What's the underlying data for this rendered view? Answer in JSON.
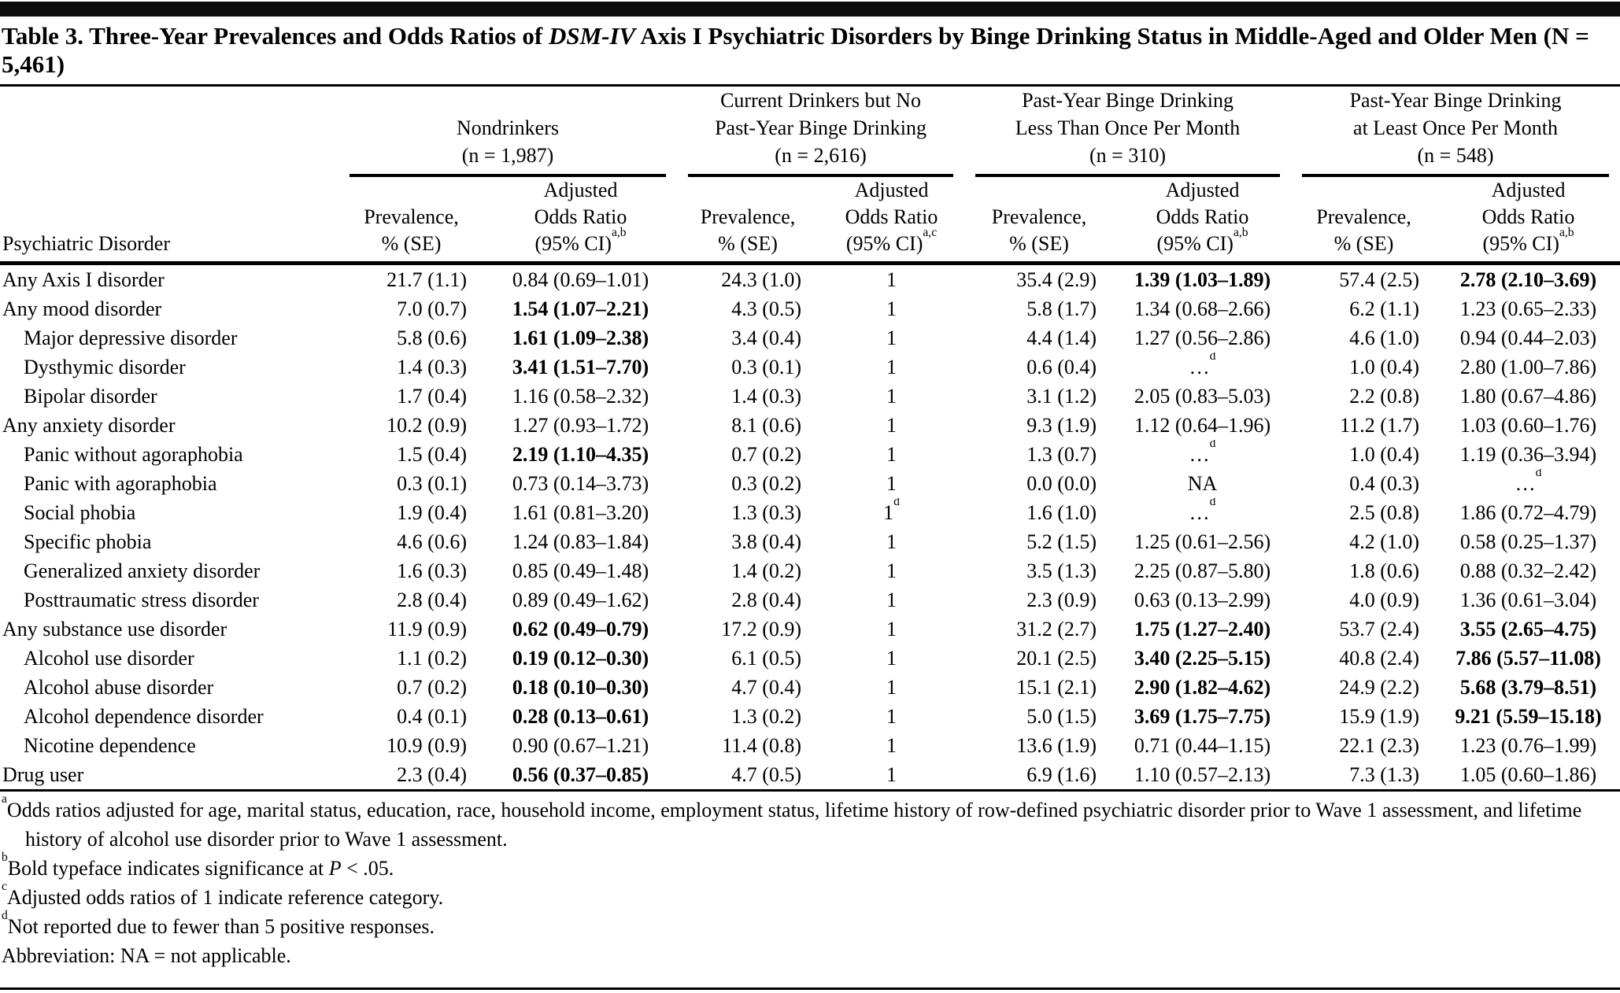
{
  "table": {
    "title": {
      "part1": "Table 3. Three-Year Prevalences and Odds Ratios of ",
      "italic": "DSM-IV",
      "part2": " Axis I Psychiatric Disorders by Binge Drinking Status in Middle-Aged and Older Men (N = 5,461)"
    },
    "row_header_label": "Psychiatric Disorder",
    "groups": [
      {
        "title_lines": [
          "Nondrinkers",
          "(n = 1,987)"
        ],
        "prev_header_lines": [
          "Prevalence,",
          "% (SE)"
        ],
        "or_header_lines": [
          "Adjusted",
          "Odds Ratio",
          "(95% CI)"
        ],
        "or_sup": "a,b"
      },
      {
        "title_lines": [
          "Current Drinkers but No",
          "Past-Year Binge Drinking",
          "(n = 2,616)"
        ],
        "prev_header_lines": [
          "Prevalence,",
          "% (SE)"
        ],
        "or_header_lines": [
          "Adjusted",
          "Odds Ratio",
          "(95% CI)"
        ],
        "or_sup": "a,c"
      },
      {
        "title_lines": [
          "Past-Year Binge Drinking",
          "Less Than Once Per Month",
          "(n = 310)"
        ],
        "prev_header_lines": [
          "Prevalence,",
          "% (SE)"
        ],
        "or_header_lines": [
          "Adjusted",
          "Odds Ratio",
          "(95% CI)"
        ],
        "or_sup": "a,b"
      },
      {
        "title_lines": [
          "Past-Year Binge Drinking",
          "at Least Once Per Month",
          "(n = 548)"
        ],
        "prev_header_lines": [
          "Prevalence,",
          "% (SE)"
        ],
        "or_header_lines": [
          "Adjusted",
          "Odds Ratio",
          "(95% CI)"
        ],
        "or_sup": "a,b"
      }
    ],
    "rows": [
      {
        "label": "Any Axis I disorder",
        "indent": false,
        "cells": [
          {
            "t": "21.7 (1.1)"
          },
          {
            "t": "0.84 (0.69–1.01)"
          },
          {
            "t": "24.3 (1.0)"
          },
          {
            "t": "1"
          },
          {
            "t": "35.4 (2.9)"
          },
          {
            "t": "1.39 (1.03–1.89)",
            "bold": true
          },
          {
            "t": "57.4 (2.5)"
          },
          {
            "t": "2.78 (2.10–3.69)",
            "bold": true
          }
        ]
      },
      {
        "label": "Any mood disorder",
        "indent": false,
        "cells": [
          {
            "t": "7.0 (0.7)"
          },
          {
            "t": "1.54 (1.07–2.21)",
            "bold": true
          },
          {
            "t": "4.3 (0.5)"
          },
          {
            "t": "1"
          },
          {
            "t": "5.8 (1.7)"
          },
          {
            "t": "1.34 (0.68–2.66)"
          },
          {
            "t": "6.2 (1.1)"
          },
          {
            "t": "1.23 (0.65–2.33)"
          }
        ]
      },
      {
        "label": "Major depressive disorder",
        "indent": true,
        "cells": [
          {
            "t": "5.8 (0.6)"
          },
          {
            "t": "1.61 (1.09–2.38)",
            "bold": true
          },
          {
            "t": "3.4 (0.4)"
          },
          {
            "t": "1"
          },
          {
            "t": "4.4 (1.4)"
          },
          {
            "t": "1.27 (0.56–2.86)"
          },
          {
            "t": "4.6 (1.0)"
          },
          {
            "t": "0.94 (0.44–2.03)"
          }
        ]
      },
      {
        "label": "Dysthymic disorder",
        "indent": true,
        "cells": [
          {
            "t": "1.4 (0.3)"
          },
          {
            "t": "3.41 (1.51–7.70)",
            "bold": true
          },
          {
            "t": "0.3 (0.1)"
          },
          {
            "t": "1"
          },
          {
            "t": "0.6 (0.4)"
          },
          {
            "t": "…",
            "sup": "d"
          },
          {
            "t": "1.0 (0.4)"
          },
          {
            "t": "2.80 (1.00–7.86)"
          }
        ]
      },
      {
        "label": "Bipolar disorder",
        "indent": true,
        "cells": [
          {
            "t": "1.7 (0.4)"
          },
          {
            "t": "1.16 (0.58–2.32)"
          },
          {
            "t": "1.4 (0.3)"
          },
          {
            "t": "1"
          },
          {
            "t": "3.1 (1.2)"
          },
          {
            "t": "2.05 (0.83–5.03)"
          },
          {
            "t": "2.2 (0.8)"
          },
          {
            "t": "1.80 (0.67–4.86)"
          }
        ]
      },
      {
        "label": "Any anxiety disorder",
        "indent": false,
        "cells": [
          {
            "t": "10.2 (0.9)"
          },
          {
            "t": "1.27 (0.93–1.72)"
          },
          {
            "t": "8.1 (0.6)"
          },
          {
            "t": "1"
          },
          {
            "t": "9.3 (1.9)"
          },
          {
            "t": "1.12 (0.64–1.96)"
          },
          {
            "t": "11.2 (1.7)"
          },
          {
            "t": "1.03 (0.60–1.76)"
          }
        ]
      },
      {
        "label": "Panic without agoraphobia",
        "indent": true,
        "cells": [
          {
            "t": "1.5 (0.4)"
          },
          {
            "t": "2.19 (1.10–4.35)",
            "bold": true
          },
          {
            "t": "0.7 (0.2)"
          },
          {
            "t": "1"
          },
          {
            "t": "1.3 (0.7)"
          },
          {
            "t": "…",
            "sup": "d"
          },
          {
            "t": "1.0 (0.4)"
          },
          {
            "t": "1.19 (0.36–3.94)"
          }
        ]
      },
      {
        "label": "Panic with agoraphobia",
        "indent": true,
        "cells": [
          {
            "t": "0.3 (0.1)"
          },
          {
            "t": "0.73 (0.14–3.73)"
          },
          {
            "t": "0.3 (0.2)"
          },
          {
            "t": "1"
          },
          {
            "t": "0.0 (0.0)"
          },
          {
            "t": "NA"
          },
          {
            "t": "0.4 (0.3)"
          },
          {
            "t": "…",
            "sup": "d"
          }
        ]
      },
      {
        "label": "Social phobia",
        "indent": true,
        "cells": [
          {
            "t": "1.9 (0.4)"
          },
          {
            "t": "1.61 (0.81–3.20)"
          },
          {
            "t": "1.3 (0.3)"
          },
          {
            "t": "1",
            "sup": "d"
          },
          {
            "t": "1.6 (1.0)"
          },
          {
            "t": "…",
            "sup": "d"
          },
          {
            "t": "2.5 (0.8)"
          },
          {
            "t": "1.86 (0.72–4.79)"
          }
        ]
      },
      {
        "label": "Specific phobia",
        "indent": true,
        "cells": [
          {
            "t": "4.6 (0.6)"
          },
          {
            "t": "1.24 (0.83–1.84)"
          },
          {
            "t": "3.8 (0.4)"
          },
          {
            "t": "1"
          },
          {
            "t": "5.2 (1.5)"
          },
          {
            "t": "1.25 (0.61–2.56)"
          },
          {
            "t": "4.2 (1.0)"
          },
          {
            "t": "0.58 (0.25–1.37)"
          }
        ]
      },
      {
        "label": "Generalized anxiety disorder",
        "indent": true,
        "cells": [
          {
            "t": "1.6 (0.3)"
          },
          {
            "t": "0.85 (0.49–1.48)"
          },
          {
            "t": "1.4 (0.2)"
          },
          {
            "t": "1"
          },
          {
            "t": "3.5 (1.3)"
          },
          {
            "t": "2.25 (0.87–5.80)"
          },
          {
            "t": "1.8 (0.6)"
          },
          {
            "t": "0.88 (0.32–2.42)"
          }
        ]
      },
      {
        "label": "Posttraumatic stress disorder",
        "indent": true,
        "cells": [
          {
            "t": "2.8 (0.4)"
          },
          {
            "t": "0.89 (0.49–1.62)"
          },
          {
            "t": "2.8 (0.4)"
          },
          {
            "t": "1"
          },
          {
            "t": "2.3 (0.9)"
          },
          {
            "t": "0.63 (0.13–2.99)"
          },
          {
            "t": "4.0 (0.9)"
          },
          {
            "t": "1.36 (0.61–3.04)"
          }
        ]
      },
      {
        "label": "Any substance use disorder",
        "indent": false,
        "cells": [
          {
            "t": "11.9 (0.9)"
          },
          {
            "t": "0.62 (0.49–0.79)",
            "bold": true
          },
          {
            "t": "17.2 (0.9)"
          },
          {
            "t": "1"
          },
          {
            "t": "31.2 (2.7)"
          },
          {
            "t": "1.75 (1.27–2.40)",
            "bold": true
          },
          {
            "t": "53.7 (2.4)"
          },
          {
            "t": "3.55 (2.65–4.75)",
            "bold": true
          }
        ]
      },
      {
        "label": "Alcohol use disorder",
        "indent": true,
        "cells": [
          {
            "t": "1.1 (0.2)"
          },
          {
            "t": "0.19 (0.12–0.30)",
            "bold": true
          },
          {
            "t": "6.1 (0.5)"
          },
          {
            "t": "1"
          },
          {
            "t": "20.1 (2.5)"
          },
          {
            "t": "3.40 (2.25–5.15)",
            "bold": true
          },
          {
            "t": "40.8 (2.4)"
          },
          {
            "t": "7.86 (5.57–11.08)",
            "bold": true
          }
        ]
      },
      {
        "label": "Alcohol abuse disorder",
        "indent": true,
        "cells": [
          {
            "t": "0.7 (0.2)"
          },
          {
            "t": "0.18 (0.10–0.30)",
            "bold": true
          },
          {
            "t": "4.7 (0.4)"
          },
          {
            "t": "1"
          },
          {
            "t": "15.1 (2.1)"
          },
          {
            "t": "2.90 (1.82–4.62)",
            "bold": true
          },
          {
            "t": "24.9 (2.2)"
          },
          {
            "t": "5.68 (3.79–8.51)",
            "bold": true
          }
        ]
      },
      {
        "label": "Alcohol dependence disorder",
        "indent": true,
        "cells": [
          {
            "t": "0.4 (0.1)"
          },
          {
            "t": "0.28 (0.13–0.61)",
            "bold": true
          },
          {
            "t": "1.3 (0.2)"
          },
          {
            "t": "1"
          },
          {
            "t": "5.0 (1.5)"
          },
          {
            "t": "3.69 (1.75–7.75)",
            "bold": true
          },
          {
            "t": "15.9 (1.9)"
          },
          {
            "t": "9.21 (5.59–15.18)",
            "bold": true
          }
        ]
      },
      {
        "label": "Nicotine dependence",
        "indent": true,
        "cells": [
          {
            "t": "10.9 (0.9)"
          },
          {
            "t": "0.90 (0.67–1.21)"
          },
          {
            "t": "11.4 (0.8)"
          },
          {
            "t": "1"
          },
          {
            "t": "13.6 (1.9)"
          },
          {
            "t": "0.71 (0.44–1.15)"
          },
          {
            "t": "22.1 (2.3)"
          },
          {
            "t": "1.23 (0.76–1.99)"
          }
        ]
      },
      {
        "label": "Drug user",
        "indent": false,
        "cells": [
          {
            "t": "2.3 (0.4)"
          },
          {
            "t": "0.56 (0.37–0.85)",
            "bold": true
          },
          {
            "t": "4.7 (0.5)"
          },
          {
            "t": "1"
          },
          {
            "t": "6.9 (1.6)"
          },
          {
            "t": "1.10 (0.57–2.13)"
          },
          {
            "t": "7.3 (1.3)"
          },
          {
            "t": "1.05 (0.60–1.86)"
          }
        ]
      }
    ],
    "footnotes": [
      {
        "marker": "a",
        "text": "Odds ratios adjusted for age, marital status, education, race, household income, employment status, lifetime history of row-defined psychiatric disorder prior to Wave 1 assessment, and lifetime history of alcohol use disorder prior to Wave 1 assessment."
      },
      {
        "marker": "b",
        "text_pre": "Bold typeface indicates significance at ",
        "italic": "P",
        "text_post": " < .05."
      },
      {
        "marker": "c",
        "text": "Adjusted odds ratios of 1 indicate reference category."
      },
      {
        "marker": "d",
        "text": "Not reported due to fewer than 5 positive responses."
      },
      {
        "marker": "",
        "text": "Abbreviation: NA = not applicable."
      }
    ]
  }
}
